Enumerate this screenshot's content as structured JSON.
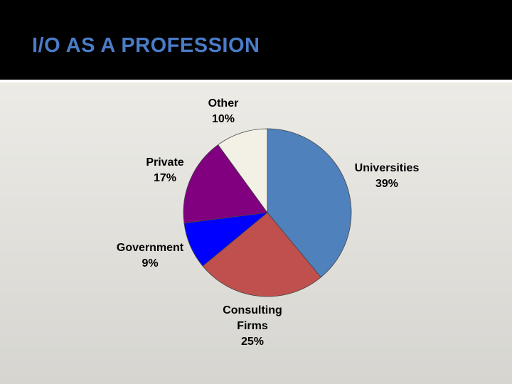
{
  "title": "I/O AS A PROFESSION",
  "chart_data": {
    "type": "pie",
    "categories": [
      "Universities",
      "Consulting Firms",
      "Government",
      "Private",
      "Other"
    ],
    "values": [
      39,
      25,
      9,
      17,
      10
    ],
    "value_labels": [
      "39%",
      "25%",
      "9%",
      "17%",
      "10%"
    ],
    "colors": [
      "#4f81bd",
      "#c0504d",
      "#0000ff",
      "#800080",
      "#f3f0e6"
    ]
  }
}
